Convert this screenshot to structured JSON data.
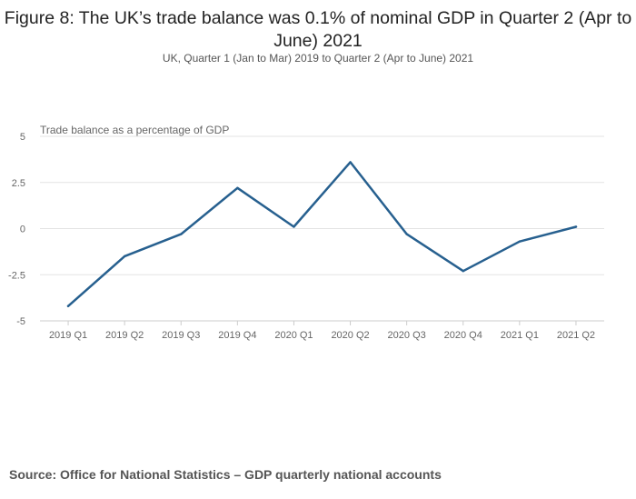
{
  "chart_data": {
    "type": "line",
    "title": "Figure 8: The UK’s trade balance was 0.1% of nominal GDP in Quarter 2 (Apr to June) 2021",
    "subtitle": "UK, Quarter 1 (Jan to Mar) 2019 to Quarter 2 (Apr to June) 2021",
    "ylabel": "Trade balance as a percentage of GDP",
    "xlabel": "",
    "categories": [
      "2019 Q1",
      "2019 Q2",
      "2019 Q3",
      "2019 Q4",
      "2020 Q1",
      "2020 Q2",
      "2020 Q3",
      "2020 Q4",
      "2021 Q1",
      "2021 Q2"
    ],
    "series": [
      {
        "name": "Trade balance as a percentage of GDP",
        "values": [
          -4.2,
          -1.5,
          -0.3,
          2.2,
          0.1,
          3.6,
          -0.3,
          -2.3,
          -0.7,
          0.1
        ]
      }
    ],
    "ylim": [
      -5,
      5
    ],
    "yticks": [
      5,
      2.5,
      0,
      -2.5,
      -5
    ],
    "ytick_labels": [
      "5",
      "2.5",
      "0",
      "-2.5",
      "-5"
    ],
    "grid": true,
    "line_color": "#27608f"
  },
  "source": "Source: Office for National Statistics – GDP quarterly national accounts"
}
